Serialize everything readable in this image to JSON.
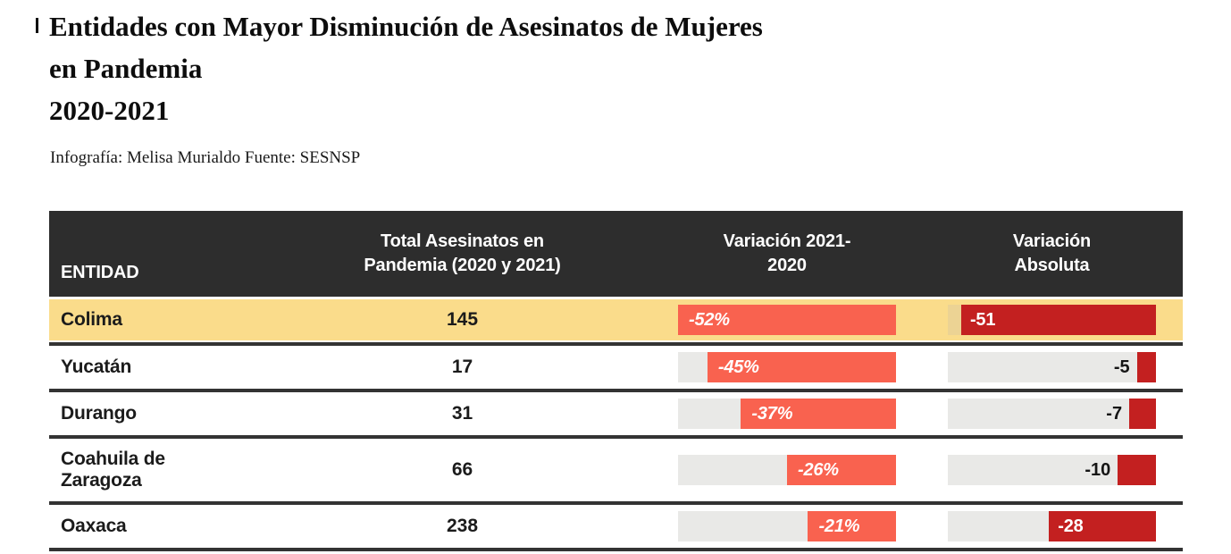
{
  "title": {
    "text": "Entidades con Mayor Disminución de Asesinatos de Mujeres\nen Pandemia\n2020-2021"
  },
  "subtitle": "Infografía: Melisa Murialdo Fuente: SESNSP",
  "colors": {
    "header_bg": "#2d2d2d",
    "separator": "#333333",
    "highlight_row": "#fadc8b",
    "highlight_track": "#ecd394",
    "track_gray": "#e9e9e7",
    "bar_salmon": "#f9624f",
    "bar_dark_red": "#c32020"
  },
  "table": {
    "headers": {
      "entity": "ENTIDAD",
      "total": "Total Asesinatos en\nPandemia (2020 y 2021)",
      "variation_pct": "Variación 2021-\n2020",
      "variation_abs": "Variación\nAbsoluta"
    },
    "rows": [
      {
        "entity": "Colima",
        "total": "145",
        "pct_label": "-52%",
        "pct_value": 52,
        "abs_label": "-51",
        "abs_value": 51,
        "abs_label_inside": true,
        "highlight": true
      },
      {
        "entity": "Yucatán",
        "total": "17",
        "pct_label": "-45%",
        "pct_value": 45,
        "abs_label": "-5",
        "abs_value": 5,
        "abs_label_inside": false,
        "highlight": false
      },
      {
        "entity": "Durango",
        "total": "31",
        "pct_label": "-37%",
        "pct_value": 37,
        "abs_label": "-7",
        "abs_value": 7,
        "abs_label_inside": false,
        "highlight": false
      },
      {
        "entity": "Coahuila de Zaragoza",
        "total": "66",
        "pct_label": "-26%",
        "pct_value": 26,
        "abs_label": "-10",
        "abs_value": 10,
        "abs_label_inside": false,
        "highlight": false
      },
      {
        "entity": "Oaxaca",
        "total": "238",
        "pct_label": "-21%",
        "pct_value": 21,
        "abs_label": "-28",
        "abs_value": 28,
        "abs_label_inside": true,
        "highlight": false
      }
    ]
  },
  "chart_data": {
    "type": "table",
    "title": "Entidades con Mayor Disminución de Asesinatos de Mujeres en Pandemia 2020-2021",
    "source": "Infografía: Melisa Murialdo Fuente: SESNSP",
    "categories": [
      "Colima",
      "Yucatán",
      "Durango",
      "Coahuila de Zaragoza",
      "Oaxaca"
    ],
    "series": [
      {
        "name": "Total Asesinatos en Pandemia (2020 y 2021)",
        "values": [
          145,
          17,
          31,
          66,
          238
        ]
      },
      {
        "name": "Variación 2021-2020 (%)",
        "values": [
          -52,
          -45,
          -37,
          -26,
          -21
        ]
      },
      {
        "name": "Variación Absoluta",
        "values": [
          -51,
          -5,
          -7,
          -10,
          -28
        ]
      }
    ],
    "highlighted_category": "Colima",
    "pct_axis_max": 52,
    "abs_axis_max": 54.5,
    "bars_right_anchored": true
  }
}
